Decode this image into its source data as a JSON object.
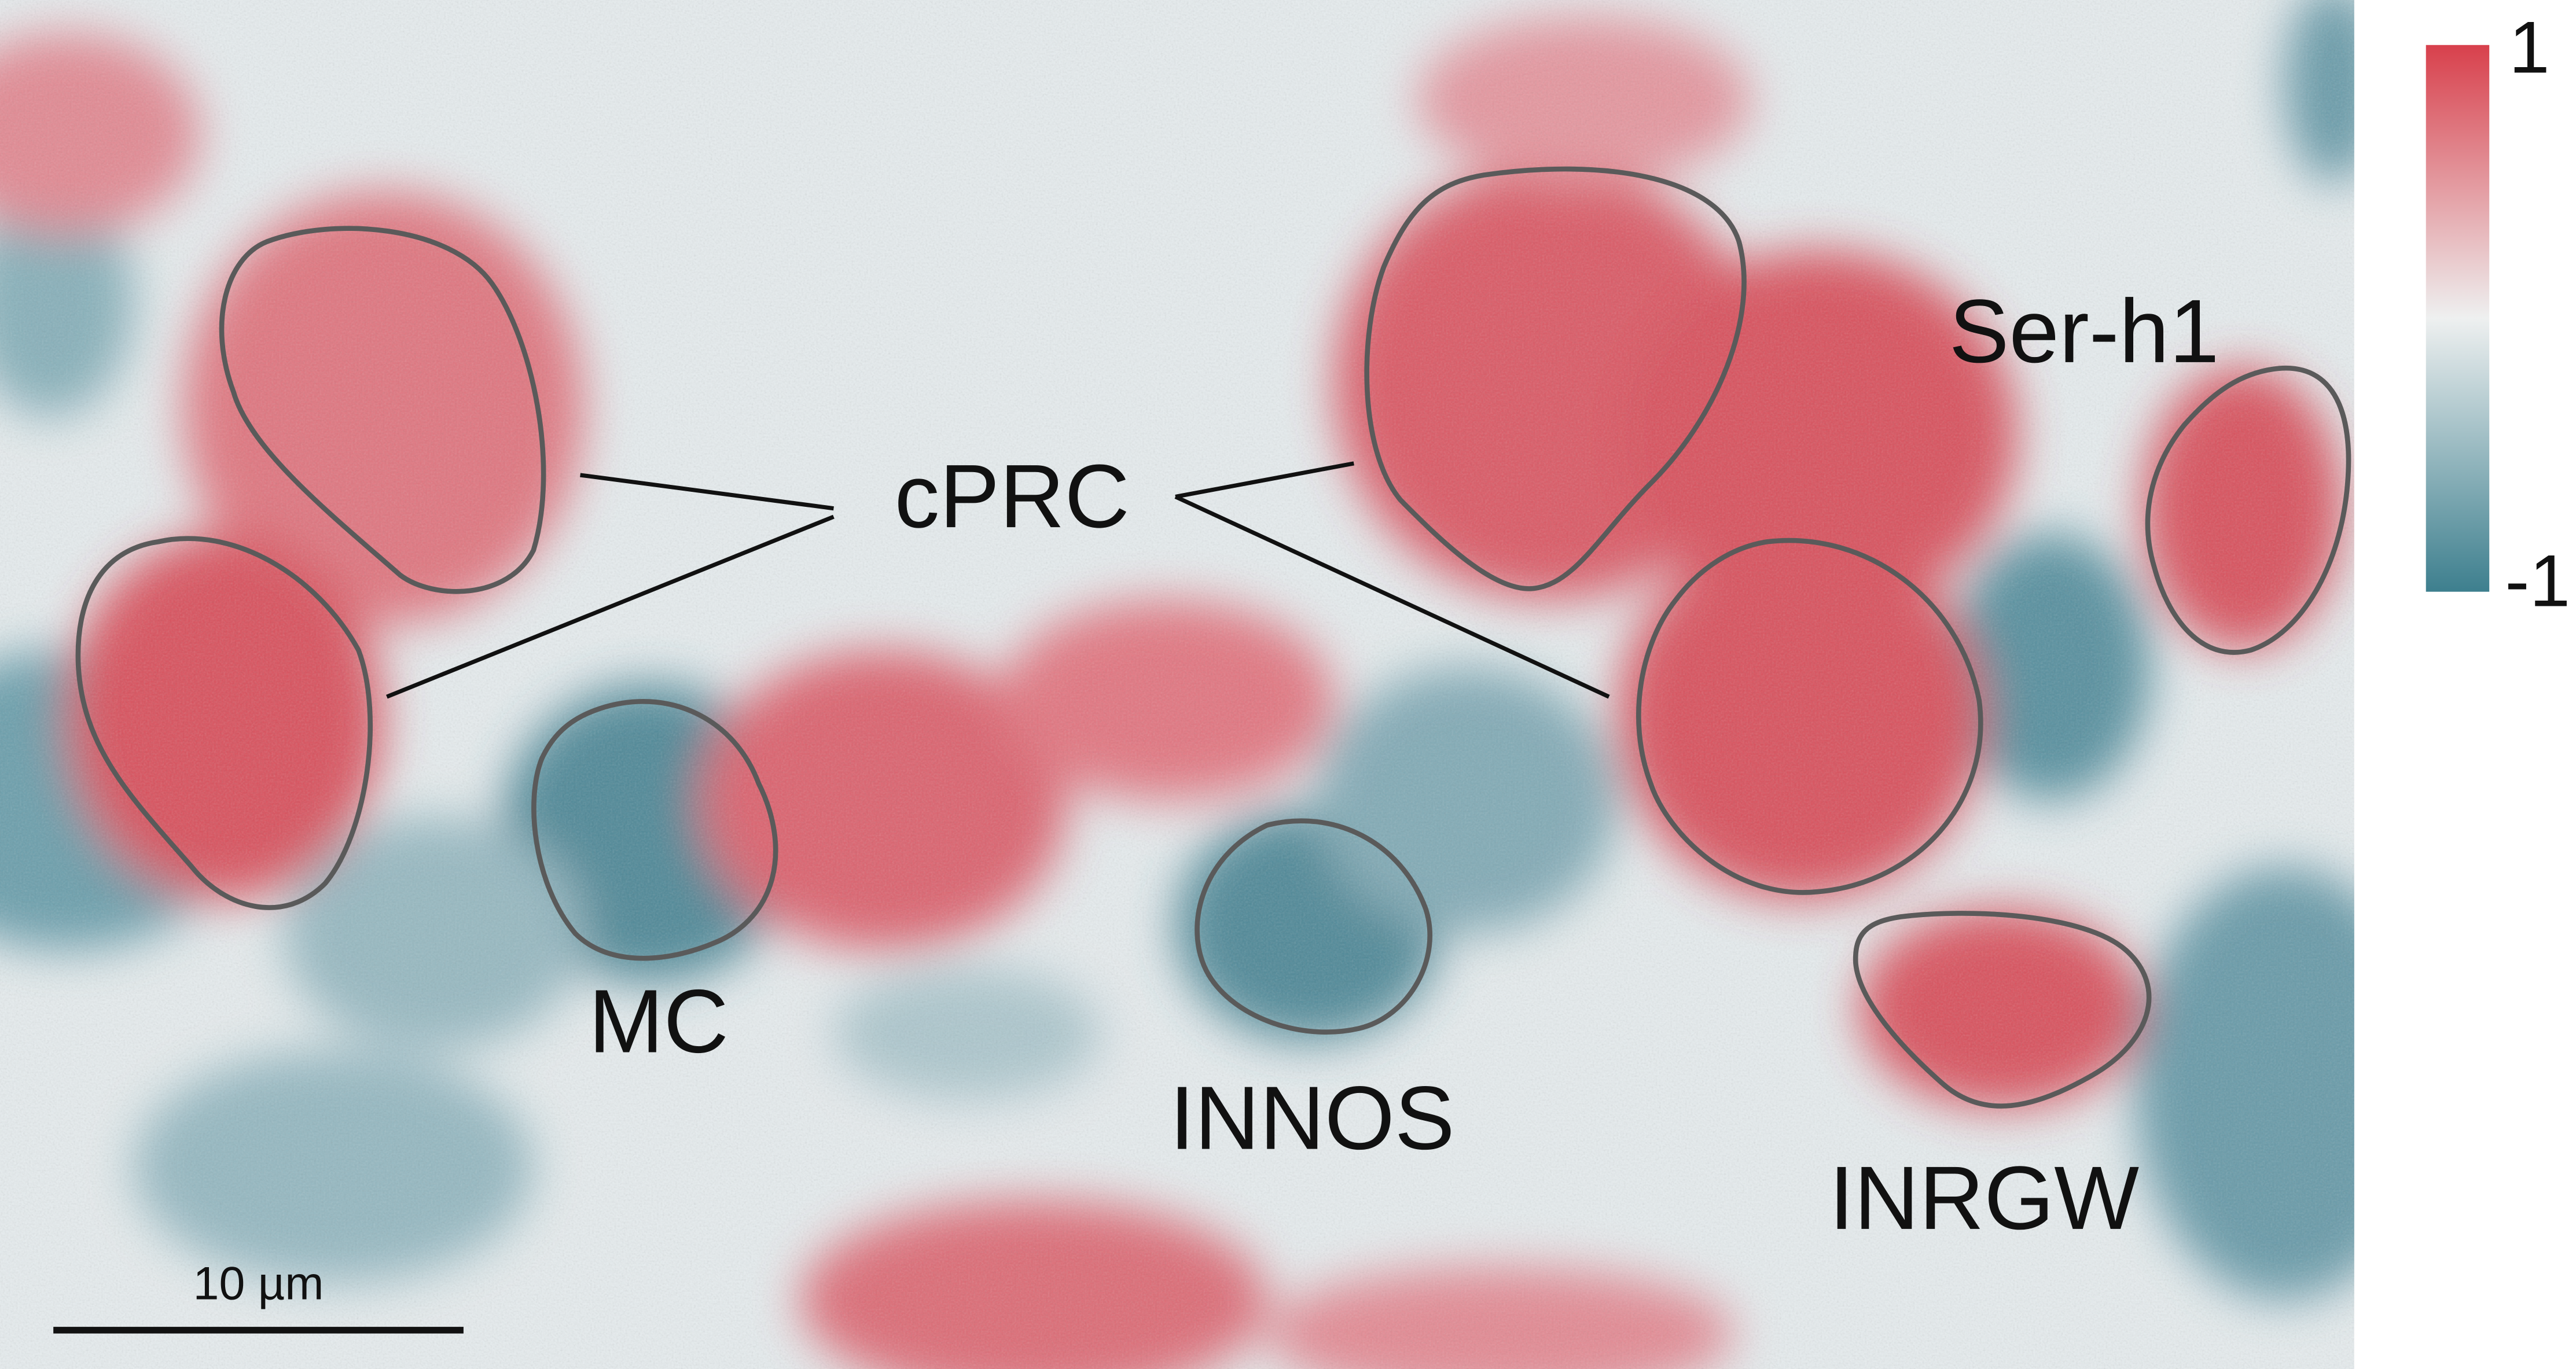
{
  "labels": {
    "cprc": "cPRC",
    "serh1": "Ser-h1",
    "mc": "MC",
    "innos": "INNOS",
    "inrgw": "INRGW"
  },
  "scale_bar": "10 µm",
  "colorbar": {
    "max": "1",
    "min": "-1"
  }
}
